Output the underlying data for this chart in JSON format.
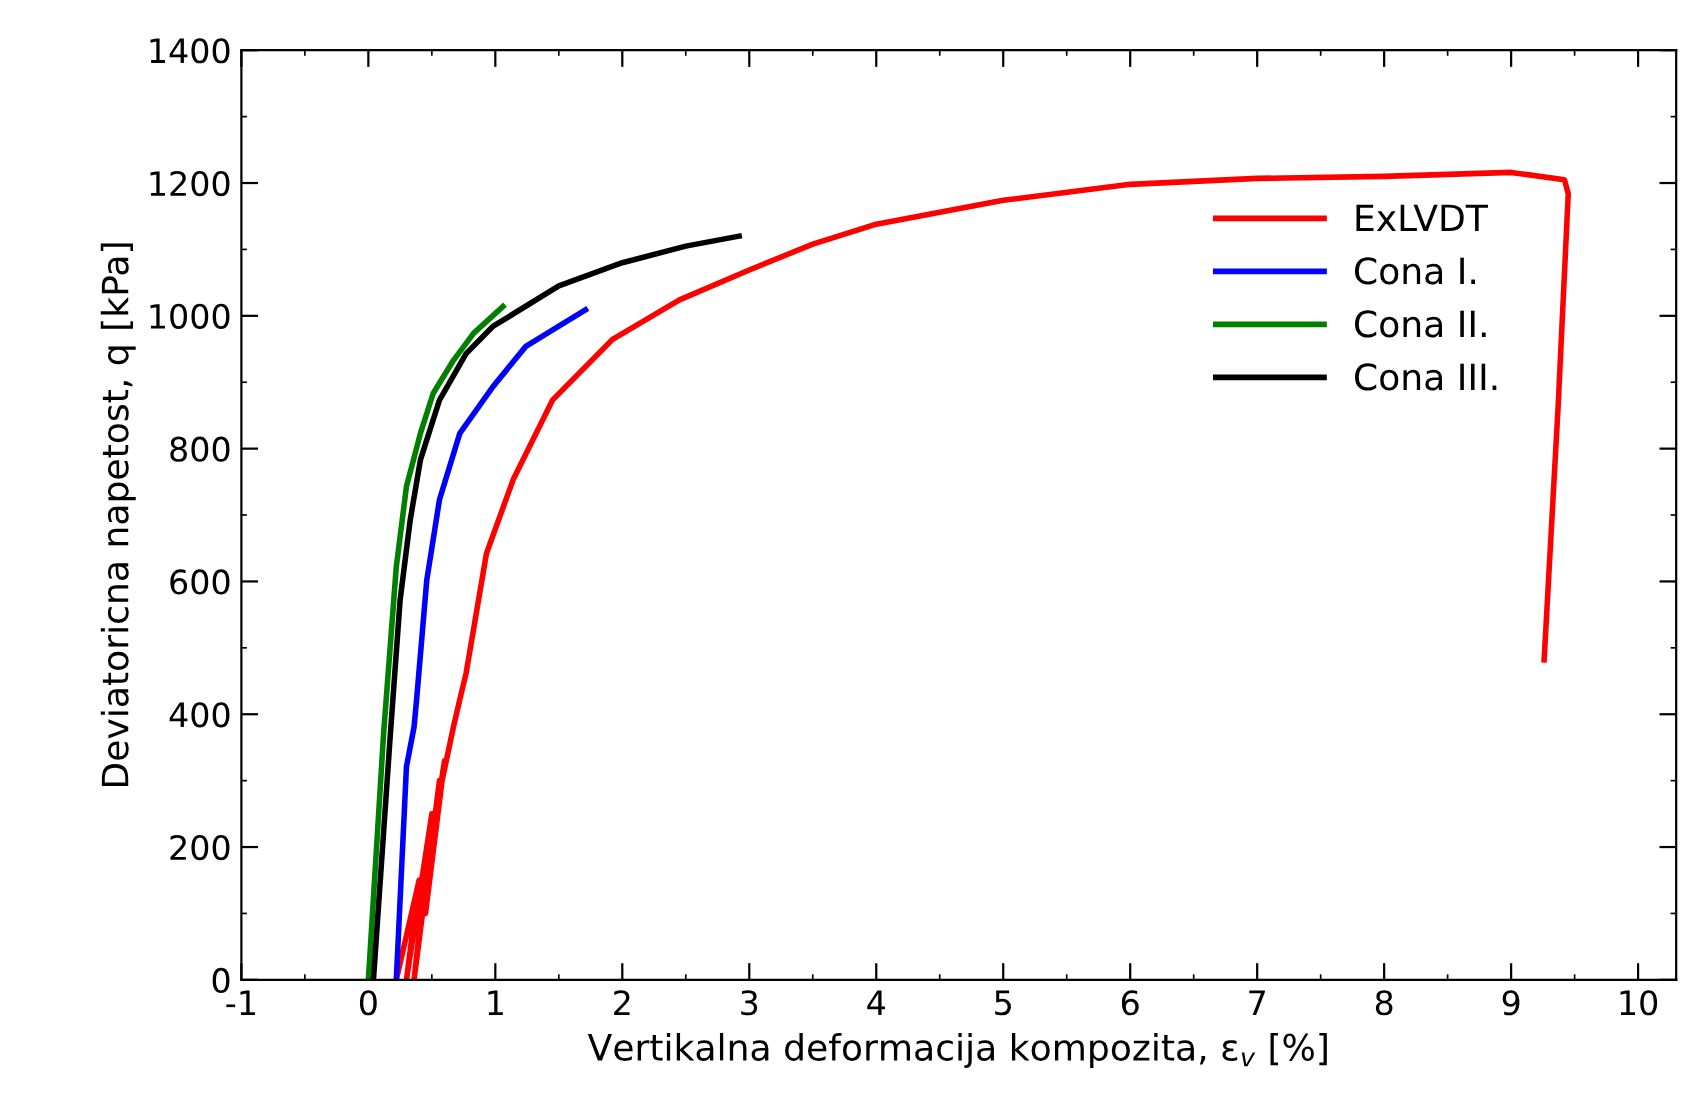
{
  "chart_data": {
    "type": "line",
    "xlabel": "Vertikalna deformacija kompozita, ε$_{v}$ [%]",
    "ylabel": "Deviatoricna napetost, q [kPa]",
    "xlim": [
      -1,
      10.3
    ],
    "xticks": [
      -1,
      0,
      1,
      2,
      3,
      4,
      5,
      6,
      7,
      8,
      9,
      10
    ],
    "ylim": [
      0,
      1400
    ],
    "yticks": [
      0,
      200,
      400,
      600,
      800,
      1000,
      1200,
      1400
    ],
    "grid": false,
    "legend": "top right",
    "marker": "none",
    "line_style": "solid",
    "series": [
      {
        "name": "ExLVDT",
        "color": "#ff0000",
        "x": [
          0.22,
          0.4,
          0.3,
          0.5,
          0.36,
          0.56,
          0.45,
          0.6,
          0.56,
          0.67,
          0.72,
          0.77,
          0.93,
          1.14,
          1.45,
          1.92,
          2.45,
          3,
          3.5,
          4,
          5,
          6,
          7,
          8,
          9,
          9.42,
          9.45,
          9.37,
          9.26
        ],
        "values": [
          0,
          150,
          0,
          250,
          0,
          300,
          100,
          330,
          281,
          381,
          422,
          462,
          642,
          753,
          873,
          964,
          1024,
          1069,
          1108,
          1138,
          1174,
          1198,
          1207,
          1210,
          1216,
          1205,
          1184,
          863,
          482
        ]
      },
      {
        "name": "Cona I.",
        "color": "#0000ff",
        "x": [
          0.22,
          0.3,
          0.36,
          0.38,
          0.46,
          0.56,
          0.72,
          0.98,
          1.24,
          1.71
        ],
        "values": [
          0,
          321,
          381,
          422,
          602,
          723,
          823,
          893,
          954,
          1009
        ]
      },
      {
        "name": "Cona II.",
        "color": "#008000",
        "x": [
          0,
          0.12,
          0.22,
          0.3,
          0.41,
          0.51,
          0.67,
          0.83,
          1.06
        ],
        "values": [
          0,
          371,
          622,
          743,
          823,
          883,
          933,
          974,
          1014
        ]
      },
      {
        "name": "Cona III.",
        "color": "#000000",
        "x": [
          0.04,
          0.17,
          0.25,
          0.33,
          0.41,
          0.56,
          0.77,
          0.98,
          1.5,
          2,
          2.5,
          2.92
        ],
        "values": [
          0,
          361,
          572,
          693,
          783,
          873,
          943,
          984,
          1045,
          1080,
          1105,
          1120
        ]
      }
    ]
  }
}
